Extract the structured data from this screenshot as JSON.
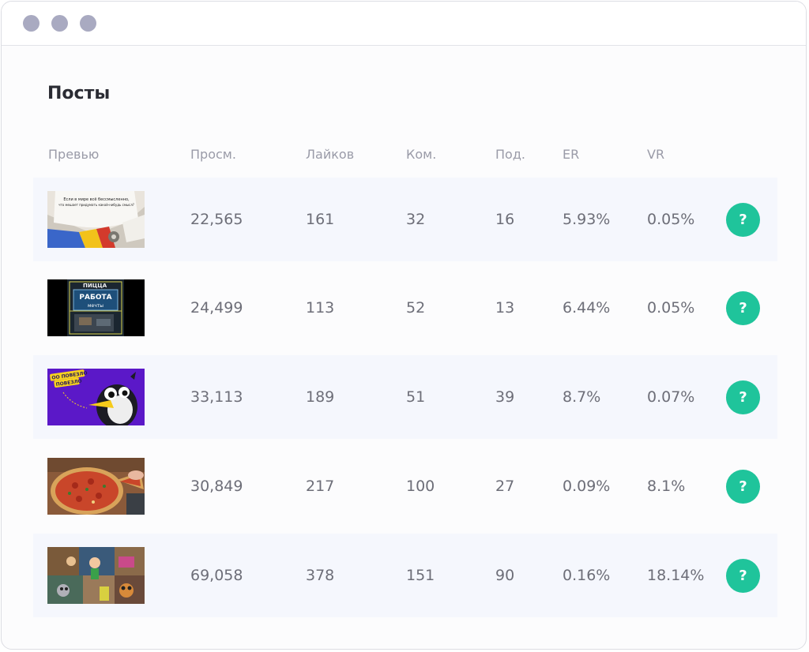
{
  "window": {
    "controls": [
      "dot",
      "dot",
      "dot"
    ]
  },
  "page_title": "Посты",
  "columns": {
    "preview": "Превью",
    "views": "Просм.",
    "likes": "Лайков",
    "comments": "Ком.",
    "subs": "Под.",
    "er": "ER",
    "vr": "VR"
  },
  "rows": [
    {
      "views": "22,565",
      "likes": "161",
      "comments": "32",
      "subs": "16",
      "er": "5.93%",
      "vr": "0.05%",
      "help": "?"
    },
    {
      "views": "24,499",
      "likes": "113",
      "comments": "52",
      "subs": "13",
      "er": "6.44%",
      "vr": "0.05%",
      "help": "?"
    },
    {
      "views": "33,113",
      "likes": "189",
      "comments": "51",
      "subs": "39",
      "er": "8.7%",
      "vr": "0.07%",
      "help": "?"
    },
    {
      "views": "30,849",
      "likes": "217",
      "comments": "100",
      "subs": "27",
      "er": "0.09%",
      "vr": "8.1%",
      "help": "?"
    },
    {
      "views": "69,058",
      "likes": "378",
      "comments": "151",
      "subs": "90",
      "er": "0.16%",
      "vr": "18.14%",
      "help": "?"
    }
  ],
  "thumbnails": {
    "row0": {
      "text_top": "Если в мире всё бессмысленно,",
      "text_bottom": "что мешает придумать какой-нибудь смысл?"
    },
    "row1": {
      "text_top": "ПИЦЦА",
      "text_main": "РАБОТА",
      "text_sub": "мечты"
    },
    "row2": {
      "badge_top": "ОО ПОВЕЗЛО",
      "badge_bottom": "ПОВЕЗЛО"
    }
  },
  "colors": {
    "accent": "#1fc49b",
    "row_shade": "#f5f7fd",
    "dot": "#a9aac1"
  }
}
